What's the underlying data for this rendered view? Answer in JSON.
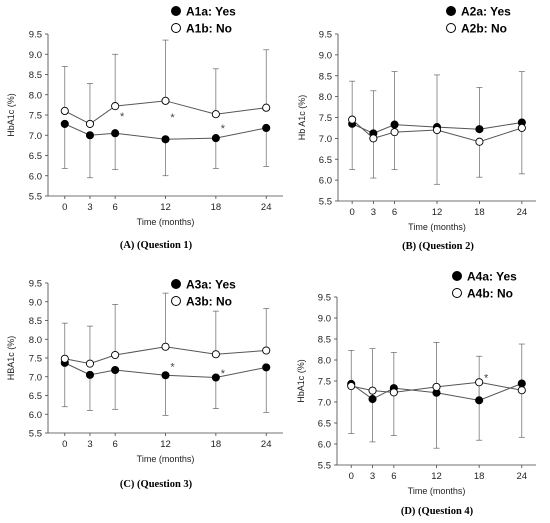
{
  "chart_data": [
    {
      "type": "line",
      "caption": "(A) (Question 1)",
      "xlabel": "Time (months)",
      "ylabel": "HbA1c (%)",
      "x": [
        0,
        3,
        6,
        12,
        18,
        24
      ],
      "xlim": [
        -2,
        26
      ],
      "ylim": [
        5.5,
        9.5
      ],
      "yticks": [
        "5.5",
        "6.0",
        "6.5",
        "7.0",
        "7.5",
        "8.0",
        "8.5",
        "9.0",
        "9.5"
      ],
      "grid": false,
      "legend_position": "top-right",
      "series": [
        {
          "name": "A1a:  Yes",
          "marker": "filled",
          "values": [
            7.28,
            7.0,
            7.05,
            6.9,
            6.93,
            7.18
          ],
          "error_low": [
            1.1,
            1.05,
            0.9,
            0.9,
            0.75,
            0.95
          ],
          "error_high": null
        },
        {
          "name": "A1b:  No",
          "marker": "open",
          "values": [
            7.6,
            7.28,
            7.72,
            7.85,
            7.52,
            7.68
          ],
          "error_low": null,
          "error_high": [
            1.1,
            1.0,
            1.28,
            1.5,
            1.12,
            1.43
          ]
        }
      ],
      "annotations": [
        {
          "text": "*",
          "x": 6,
          "y": 7.48
        },
        {
          "text": "*",
          "x": 12,
          "y": 7.45
        },
        {
          "text": "*",
          "x": 18,
          "y": 7.18
        }
      ]
    },
    {
      "type": "line",
      "caption": "(B) (Question 2)",
      "xlabel": "Time (months)",
      "ylabel": "Hb A1c (%)",
      "x": [
        0,
        3,
        6,
        12,
        18,
        24
      ],
      "xlim": [
        -2,
        26
      ],
      "ylim": [
        5.5,
        9.5
      ],
      "yticks": [
        "5.5",
        "6.0",
        "6.5",
        "7.0",
        "7.5",
        "8.0",
        "8.5",
        "9.0",
        "9.5"
      ],
      "grid": false,
      "legend_position": "top-right",
      "series": [
        {
          "name": "A2a:  Yes",
          "marker": "filled",
          "values": [
            7.35,
            7.12,
            7.33,
            7.27,
            7.22,
            7.38
          ],
          "error_low": null,
          "error_high": [
            1.02,
            1.02,
            1.27,
            1.25,
            1.0,
            1.22
          ]
        },
        {
          "name": "A2b:  No",
          "marker": "open",
          "values": [
            7.45,
            7.0,
            7.15,
            7.2,
            6.92,
            7.25
          ],
          "error_low": [
            1.2,
            0.95,
            0.9,
            1.3,
            0.85,
            1.1
          ],
          "error_high": null
        }
      ],
      "annotations": []
    },
    {
      "type": "line",
      "caption": "(C) (Question 3)",
      "xlabel": "Time (months)",
      "ylabel": "HBA1c (%)",
      "x": [
        0,
        3,
        6,
        12,
        18,
        24
      ],
      "xlim": [
        -2,
        26
      ],
      "ylim": [
        5.5,
        9.5
      ],
      "yticks": [
        "5.5",
        "6.0",
        "6.5",
        "7.0",
        "7.5",
        "8.0",
        "8.5",
        "9.0",
        "9.5"
      ],
      "grid": false,
      "legend_position": "top-right",
      "series": [
        {
          "name": "A3a:  Yes",
          "marker": "filled",
          "values": [
            7.37,
            7.05,
            7.18,
            7.04,
            6.98,
            7.25
          ],
          "error_low": [
            1.17,
            0.95,
            1.05,
            1.07,
            0.83,
            1.2
          ],
          "error_high": null
        },
        {
          "name": "A3b:  No",
          "marker": "open",
          "values": [
            7.48,
            7.35,
            7.58,
            7.8,
            7.6,
            7.7
          ],
          "error_low": null,
          "error_high": [
            0.95,
            1.0,
            1.35,
            1.43,
            1.15,
            1.12
          ]
        }
      ],
      "annotations": [
        {
          "text": "*",
          "x": 12,
          "y": 7.28
        },
        {
          "text": "*",
          "x": 18,
          "y": 7.1
        }
      ]
    },
    {
      "type": "line",
      "caption": "(D) (Question 4)",
      "xlabel": "Time (months)",
      "ylabel": "HbA1c (%)",
      "x": [
        0,
        3,
        6,
        12,
        18,
        24
      ],
      "xlim": [
        -2,
        26
      ],
      "ylim": [
        5.5,
        9.5
      ],
      "yticks": [
        "5.5",
        "6.0",
        "6.5",
        "7.0",
        "7.5",
        "8.0",
        "8.5",
        "9.0",
        "9.5"
      ],
      "grid": false,
      "legend_position": "top-right",
      "series": [
        {
          "name": "A4a:  Yes",
          "marker": "filled",
          "values": [
            7.43,
            7.07,
            7.33,
            7.22,
            7.04,
            7.44
          ],
          "error_low": null,
          "error_high": [
            0.8,
            1.2,
            0.85,
            1.2,
            1.05,
            0.94
          ]
        },
        {
          "name": "A4b:  No",
          "marker": "open",
          "values": [
            7.38,
            7.27,
            7.23,
            7.36,
            7.47,
            7.28
          ],
          "error_low": [
            1.13,
            1.22,
            1.03,
            1.46,
            1.38,
            1.12
          ],
          "error_high": null
        }
      ],
      "annotations": [
        {
          "text": "*",
          "x": 18,
          "y": 7.58
        }
      ]
    }
  ]
}
